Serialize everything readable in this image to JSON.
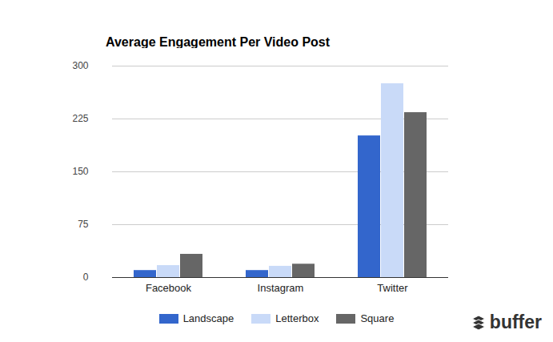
{
  "chart_data": {
    "type": "bar",
    "title": "Average Engagement Per Video Post",
    "categories": [
      "Facebook",
      "Instagram",
      "Twitter"
    ],
    "series": [
      {
        "name": "Landscape",
        "color": "#3366cc",
        "values": [
          10,
          10,
          201
        ]
      },
      {
        "name": "Letterbox",
        "color": "#c9daf8",
        "values": [
          17,
          16,
          275
        ]
      },
      {
        "name": "Square",
        "color": "#666666",
        "values": [
          33,
          19,
          234
        ]
      }
    ],
    "ylim": [
      0,
      300
    ],
    "yticks": [
      0,
      75,
      150,
      225,
      300
    ],
    "grid": true,
    "legend": "bottom",
    "annotations": [
      "buffer"
    ]
  }
}
